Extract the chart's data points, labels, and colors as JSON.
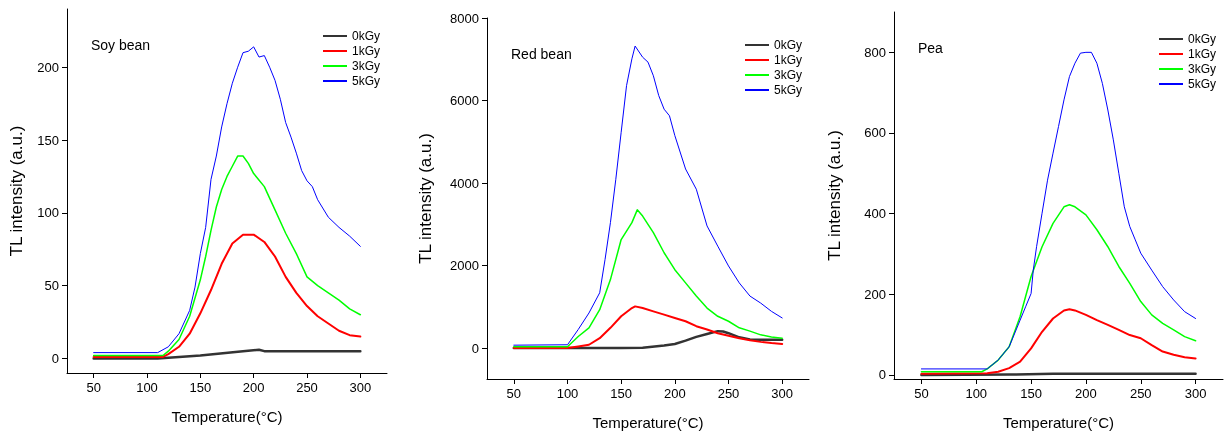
{
  "chart_data": [
    {
      "type": "line",
      "title": "Soy bean",
      "xlabel": "Temperature(°C)",
      "ylabel": "TL intensity (a.u.)",
      "xlim": [
        25,
        325
      ],
      "xticks": [
        50,
        100,
        150,
        200,
        250,
        300
      ],
      "ylim": [
        -10,
        240
      ],
      "yticks": [
        0,
        50,
        100,
        150,
        200
      ],
      "grid": false,
      "legend": "top right",
      "marker": "none",
      "line_style": "solid",
      "series": [
        {
          "name": "0kGy",
          "color": "#333333",
          "x": [
            50,
            110,
            150,
            190,
            205,
            210,
            250,
            300
          ],
          "values": [
            0,
            0,
            2,
            5,
            6,
            5,
            5,
            5
          ]
        },
        {
          "name": "1kGy",
          "color": "#ff0000",
          "x": [
            50,
            115,
            120,
            130,
            140,
            150,
            160,
            170,
            180,
            190,
            200,
            210,
            220,
            230,
            240,
            250,
            260,
            270,
            280,
            290,
            300
          ],
          "values": [
            1,
            1,
            3,
            8,
            17,
            31,
            47,
            65,
            79,
            85,
            85,
            80,
            70,
            56,
            45,
            36,
            29,
            24,
            19,
            16,
            15
          ]
        },
        {
          "name": "3kGy",
          "color": "#00ff00",
          "x": [
            50,
            115,
            120,
            130,
            140,
            150,
            155,
            160,
            165,
            170,
            175,
            180,
            185,
            190,
            195,
            200,
            210,
            220,
            230,
            240,
            250,
            260,
            270,
            280,
            290,
            300
          ],
          "values": [
            2,
            2,
            5,
            13,
            29,
            54,
            70,
            88,
            104,
            116,
            125,
            132,
            139,
            139,
            134,
            127,
            118,
            102,
            86,
            72,
            56,
            50,
            45,
            40,
            34,
            30
          ]
        },
        {
          "name": "5kGy",
          "color": "#0000ff",
          "x": [
            50,
            110,
            120,
            130,
            140,
            145,
            150,
            155,
            160,
            165,
            170,
            175,
            180,
            185,
            190,
            195,
            200,
            205,
            210,
            215,
            220,
            225,
            230,
            235,
            240,
            245,
            250,
            255,
            260,
            270,
            280,
            290,
            300
          ],
          "values": [
            4,
            4,
            8,
            17,
            33,
            49,
            72,
            90,
            123,
            139,
            159,
            175,
            189,
            200,
            210,
            211,
            214,
            207,
            208,
            200,
            191,
            178,
            162,
            152,
            141,
            129,
            122,
            118,
            109,
            97,
            90,
            84,
            77
          ]
        }
      ]
    },
    {
      "type": "line",
      "title": "Red bean",
      "xlabel": "Temperature(°C)",
      "ylabel": "TL intensity (a.u.)",
      "xlim": [
        25,
        325
      ],
      "xticks": [
        50,
        100,
        150,
        200,
        250,
        300
      ],
      "ylim": [
        -750,
        8000
      ],
      "yticks": [
        0,
        2000,
        4000,
        6000,
        8000
      ],
      "grid": false,
      "legend": "top right",
      "marker": "none",
      "line_style": "solid",
      "series": [
        {
          "name": "0kGy",
          "color": "#333333",
          "x": [
            50,
            150,
            170,
            190,
            200,
            210,
            220,
            230,
            240,
            245,
            250,
            260,
            270,
            280,
            290,
            300
          ],
          "values": [
            0,
            0,
            10,
            60,
            100,
            180,
            270,
            340,
            410,
            400,
            360,
            260,
            210,
            200,
            200,
            200
          ]
        },
        {
          "name": "1kGy",
          "color": "#ff0000",
          "x": [
            50,
            100,
            110,
            120,
            130,
            140,
            150,
            160,
            163,
            170,
            180,
            190,
            200,
            210,
            220,
            230,
            240,
            250,
            260,
            270,
            280,
            290,
            300
          ],
          "values": [
            0,
            0,
            40,
            80,
            240,
            490,
            770,
            970,
            1010,
            970,
            890,
            810,
            730,
            650,
            530,
            450,
            360,
            300,
            240,
            190,
            150,
            120,
            100
          ]
        },
        {
          "name": "3kGy",
          "color": "#00ff00",
          "x": [
            50,
            100,
            110,
            120,
            130,
            140,
            150,
            160,
            165,
            170,
            180,
            190,
            200,
            210,
            220,
            230,
            240,
            250,
            260,
            270,
            280,
            290,
            300
          ],
          "values": [
            30,
            30,
            280,
            490,
            930,
            1660,
            2630,
            3040,
            3350,
            3200,
            2800,
            2310,
            1900,
            1580,
            1260,
            970,
            770,
            650,
            490,
            410,
            320,
            270,
            240
          ]
        },
        {
          "name": "5kGy",
          "color": "#0000ff",
          "x": [
            50,
            100,
            110,
            120,
            130,
            135,
            140,
            145,
            150,
            155,
            160,
            163,
            170,
            175,
            180,
            185,
            190,
            195,
            200,
            210,
            220,
            230,
            240,
            250,
            260,
            270,
            280,
            290,
            300
          ],
          "values": [
            70,
            80,
            450,
            850,
            1340,
            2150,
            3040,
            4090,
            5230,
            6360,
            7010,
            7320,
            7050,
            6930,
            6600,
            6120,
            5790,
            5630,
            5150,
            4340,
            3850,
            2960,
            2470,
            1990,
            1580,
            1260,
            1090,
            890,
            730
          ]
        }
      ]
    },
    {
      "type": "line",
      "title": "Pea",
      "xlabel": "Temperature(°C)",
      "ylabel": "TL intensity (a.u.)",
      "xlim": [
        25,
        325
      ],
      "xticks": [
        50,
        100,
        150,
        200,
        250,
        300
      ],
      "ylim": [
        -10,
        900
      ],
      "yticks": [
        0,
        200,
        400,
        600,
        800
      ],
      "grid": false,
      "legend": "top right",
      "marker": "none",
      "line_style": "solid",
      "series": [
        {
          "name": "0kGy",
          "color": "#333333",
          "x": [
            50,
            130,
            170,
            300
          ],
          "values": [
            0,
            1,
            3,
            3
          ]
        },
        {
          "name": "1kGy",
          "color": "#ff0000",
          "x": [
            50,
            110,
            120,
            130,
            140,
            150,
            160,
            170,
            180,
            185,
            190,
            200,
            210,
            220,
            230,
            240,
            250,
            260,
            270,
            280,
            290,
            300
          ],
          "values": [
            3,
            4,
            8,
            17,
            33,
            66,
            107,
            140,
            160,
            163,
            160,
            149,
            136,
            124,
            112,
            99,
            91,
            74,
            58,
            50,
            44,
            41
          ]
        },
        {
          "name": "3kGy",
          "color": "#00ff00",
          "x": [
            50,
            105,
            110,
            120,
            130,
            140,
            150,
            160,
            170,
            180,
            185,
            190,
            200,
            210,
            220,
            230,
            240,
            250,
            260,
            270,
            280,
            290,
            300
          ],
          "values": [
            8,
            8,
            15,
            37,
            70,
            145,
            244,
            318,
            376,
            417,
            422,
            417,
            397,
            360,
            318,
            269,
            227,
            182,
            149,
            128,
            112,
            95,
            85
          ]
        },
        {
          "name": "5kGy",
          "color": "#0000ff",
          "x": [
            50,
            110,
            120,
            130,
            140,
            145,
            150,
            152,
            155,
            160,
            165,
            170,
            175,
            180,
            185,
            190,
            195,
            200,
            205,
            210,
            215,
            220,
            225,
            230,
            235,
            240,
            245,
            250,
            260,
            270,
            280,
            290,
            300
          ],
          "values": [
            15,
            15,
            37,
            70,
            136,
            169,
            202,
            260,
            318,
            401,
            483,
            550,
            616,
            682,
            740,
            773,
            798,
            800,
            800,
            773,
            723,
            657,
            583,
            500,
            417,
            368,
            335,
            302,
            260,
            219,
            186,
            157,
            140
          ]
        }
      ]
    }
  ]
}
